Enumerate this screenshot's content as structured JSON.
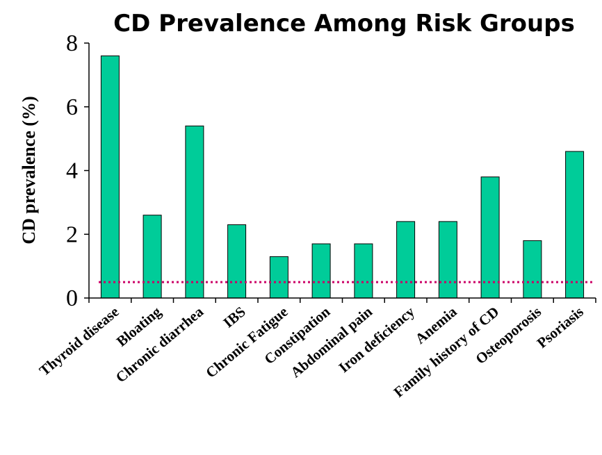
{
  "chart_data": {
    "type": "bar",
    "title": "CD Prevalence Among Risk Groups",
    "ylabel": "CD prevalence (%)",
    "xlabel": "",
    "ylim": [
      0,
      8
    ],
    "yticks": [
      0,
      2,
      4,
      6,
      8
    ],
    "grid": false,
    "categories": [
      "Thyroid disease",
      "Bloating",
      "Chronic diarrhea",
      "IBS",
      "Chronic Fatigue",
      "Constipation",
      "Abdominal pain",
      "Iron deficiency",
      "Anemia",
      "Family history of CD",
      "Osteoporosis",
      "Psoriasis"
    ],
    "values": [
      7.6,
      2.6,
      5.4,
      2.3,
      1.3,
      1.7,
      1.7,
      2.4,
      2.4,
      3.8,
      1.8,
      4.6
    ],
    "reference_line": 0.5,
    "colors": {
      "bar": "#00CC99",
      "reference_line": "#CC0066",
      "axis": "#000000"
    }
  }
}
